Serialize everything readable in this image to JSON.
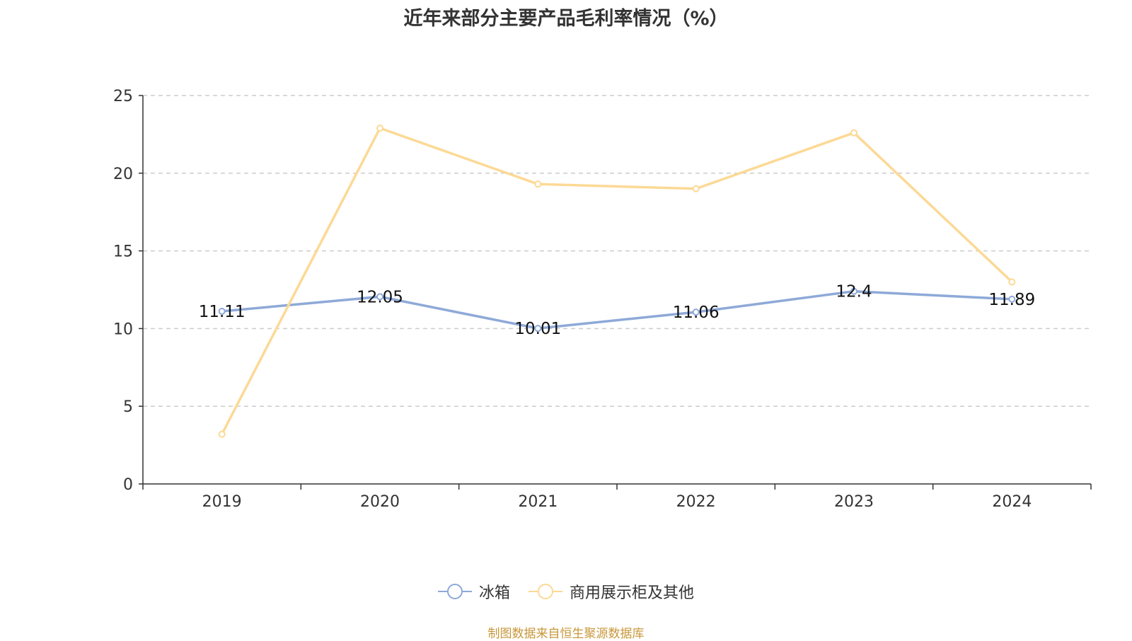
{
  "title": "近年来部分主要产品毛利率情况（%）",
  "source": "制图数据来自恒生聚源数据库",
  "chart_data": {
    "type": "line",
    "title": "近年来部分主要产品毛利率情况（%）",
    "categories": [
      "2019",
      "2020",
      "2021",
      "2022",
      "2023",
      "2024"
    ],
    "ylim": [
      0,
      25
    ],
    "yticks": [
      0,
      5,
      10,
      15,
      20,
      25
    ],
    "grid": true,
    "legend_position": "bottom",
    "series": [
      {
        "name": "冰箱",
        "color": "#8ea9d8",
        "values": [
          11.11,
          12.05,
          10.01,
          11.06,
          12.4,
          11.89
        ],
        "labels": [
          "11.11",
          "12.05",
          "10.01",
          "11.06",
          "12.4",
          "11.89"
        ]
      },
      {
        "name": "商用展示柜及其他",
        "color": "#fcd995",
        "values": [
          3.2,
          22.9,
          19.3,
          19.0,
          22.6,
          13.0
        ]
      }
    ]
  }
}
